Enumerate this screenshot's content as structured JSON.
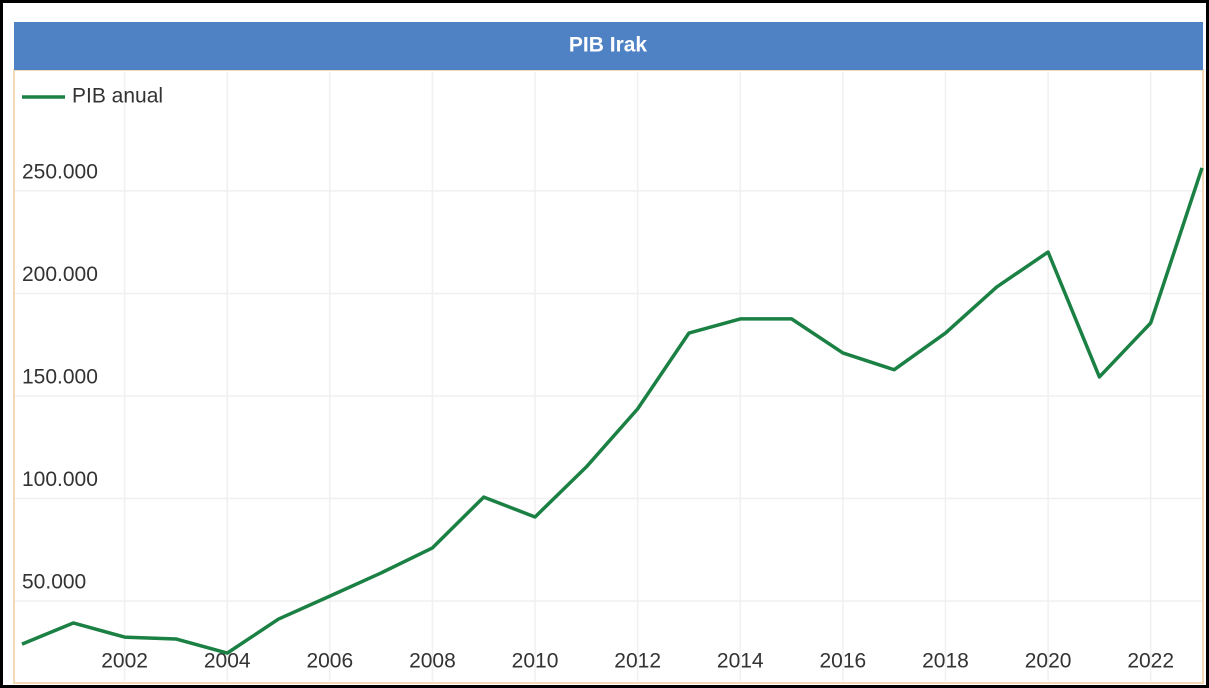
{
  "chart_data": {
    "type": "line",
    "title": "PIB Irak",
    "x": [
      2000,
      2001,
      2002,
      2003,
      2004,
      2005,
      2006,
      2007,
      2008,
      2009,
      2010,
      2011,
      2012,
      2013,
      2014,
      2015,
      2016,
      2017,
      2018,
      2019,
      2020,
      2021,
      2022,
      2023
    ],
    "series": [
      {
        "name": "PIB anual",
        "color": "#1b8043",
        "values": [
          29000,
          39300,
          32400,
          31500,
          24600,
          41200,
          52400,
          63700,
          75900,
          100700,
          91000,
          115400,
          143700,
          180700,
          187600,
          187600,
          171000,
          162800,
          180700,
          203200,
          220200,
          159300,
          185600,
          261200
        ]
      }
    ],
    "xlim": [
      2000,
      2023
    ],
    "xticks": [
      2002,
      2004,
      2006,
      2008,
      2010,
      2012,
      2014,
      2016,
      2018,
      2020,
      2022
    ],
    "ylim": [
      11000,
      308000
    ],
    "yticks": [
      {
        "value": 50000,
        "label": "50.000"
      },
      {
        "value": 100000,
        "label": "100.000"
      },
      {
        "value": 150000,
        "label": "150.000"
      },
      {
        "value": 200000,
        "label": "200.000"
      },
      {
        "value": 250000,
        "label": "250.000"
      }
    ],
    "grid": true,
    "legend": "top-left"
  }
}
